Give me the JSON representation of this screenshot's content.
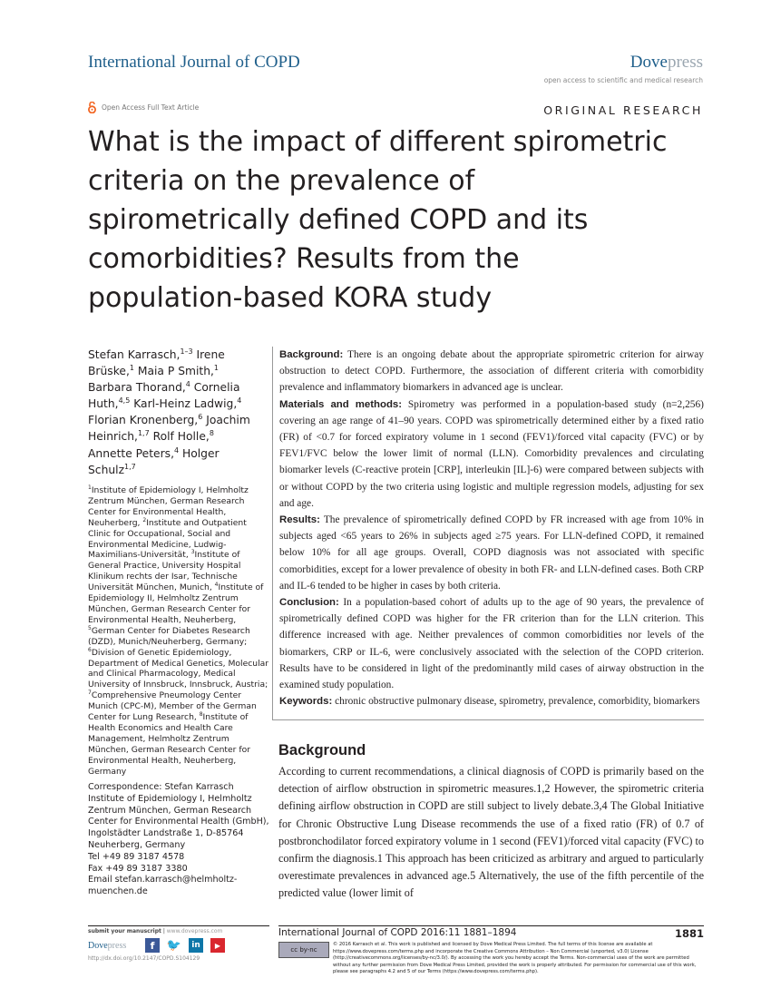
{
  "header": {
    "journal": "International Journal of COPD",
    "publisher_main": "Dove",
    "publisher_suffix": "press",
    "tagline": "open access to scientific and medical research",
    "open_access": "Open Access Full Text Article",
    "article_type": "ORIGINAL RESEARCH"
  },
  "title": "What is the impact of different spirometric criteria on the prevalence of spirometrically defined COPD and its comorbidities? Results from the population-based KORA study",
  "authors": [
    {
      "name": "Stefan Karrasch,",
      "sup": "1–3"
    },
    {
      "name": " Irene Brüske,",
      "sup": "1"
    },
    {
      "name": " Maia P Smith,",
      "sup": "1"
    },
    {
      "name": " Barbara Thorand,",
      "sup": "4"
    },
    {
      "name": " Cornelia Huth,",
      "sup": "4,5"
    },
    {
      "name": " Karl-Heinz Ladwig,",
      "sup": "4"
    },
    {
      "name": " Florian Kronenberg,",
      "sup": "6"
    },
    {
      "name": " Joachim Heinrich,",
      "sup": "1,7"
    },
    {
      "name": " Rolf Holle,",
      "sup": "8"
    },
    {
      "name": " Annette Peters,",
      "sup": "4"
    },
    {
      "name": " Holger Schulz",
      "sup": "1,7"
    }
  ],
  "affiliations": [
    {
      "sup": "1",
      "text": "Institute of Epidemiology I, Helmholtz Zentrum München, German Research Center for Environmental Health, Neuherberg, "
    },
    {
      "sup": "2",
      "text": "Institute and Outpatient Clinic for Occupational, Social and Environmental Medicine, Ludwig-Maximilians-Universität, "
    },
    {
      "sup": "3",
      "text": "Institute of General Practice, University Hospital Klinikum rechts der Isar, Technische Universität München, Munich, "
    },
    {
      "sup": "4",
      "text": "Institute of Epidemiology II, Helmholtz Zentrum München, German Research Center for Environmental Health, Neuherberg, "
    },
    {
      "sup": "5",
      "text": "German Center for Diabetes Research (DZD), Munich/Neuherberg, Germany; "
    },
    {
      "sup": "6",
      "text": "Division of Genetic Epidemiology, Department of Medical Genetics, Molecular and Clinical Pharmacology, Medical University of Innsbruck, Innsbruck, Austria; "
    },
    {
      "sup": "7",
      "text": "Comprehensive Pneumology Center Munich (CPC-M), Member of the German Center for Lung Research, "
    },
    {
      "sup": "8",
      "text": "Institute of Health Economics and Health Care Management, Helmholtz Zentrum München, German Research Center for Environmental Health, Neuherberg, Germany"
    }
  ],
  "correspondence": [
    "Correspondence: Stefan Karrasch",
    "Institute of Epidemiology I, Helmholtz Zentrum München, German Research Center for Environmental Health (GmbH), Ingolstädter Landstraße 1, D-85764 Neuherberg, Germany",
    "Tel +49 89 3187 4578",
    "Fax +49 89 3187 3380",
    "Email stefan.karrasch@helmholtz-muenchen.de"
  ],
  "abstract": [
    {
      "label": "Background:",
      "text": " There is an ongoing debate about the appropriate spirometric criterion for airway obstruction to detect COPD. Furthermore, the association of different criteria with comorbidity prevalence and inflammatory biomarkers in advanced age is unclear."
    },
    {
      "label": "Materials and methods:",
      "text": " Spirometry was performed in a population-based study (n=2,256) covering an age range of 41–90 years. COPD was spirometrically determined either by a fixed ratio (FR) of <0.7 for forced expiratory volume in 1 second (FEV1)/forced vital capacity (FVC) or by FEV1/FVC below the lower limit of normal (LLN). Comorbidity prevalences and circulating biomarker levels (C-reactive protein [CRP], interleukin [IL]-6) were compared between subjects with or without COPD by the two criteria using logistic and multiple regression models, adjusting for sex and age."
    },
    {
      "label": "Results:",
      "text": " The prevalence of spirometrically defined COPD by FR increased with age from 10% in subjects aged <65 years to 26% in subjects aged ≥75 years. For LLN-defined COPD, it remained below 10% for all age groups. Overall, COPD diagnosis was not associated with specific comorbidities, except for a lower prevalence of obesity in both FR- and LLN-defined cases. Both CRP and IL-6 tended to be higher in cases by both criteria."
    },
    {
      "label": "Conclusion:",
      "text": " In a population-based cohort of adults up to the age of 90 years, the prevalence of spirometrically defined COPD was higher for the FR criterion than for the LLN criterion. This difference increased with age. Neither prevalences of common comorbidities nor levels of the biomarkers, CRP or IL-6, were conclusively associated with the selection of the COPD criterion. Results have to be considered in light of the predominantly mild cases of airway obstruction in the examined study population."
    },
    {
      "label": "Keywords:",
      "text": " chronic obstructive pulmonary disease, spirometry, prevalence, comorbidity, biomarkers"
    }
  ],
  "section_heading": "Background",
  "body_text": "According to current recommendations, a clinical diagnosis of COPD is primarily based on the detection of airflow obstruction in spirometric measures.1,2 However, the spirometric criteria defining airflow obstruction in COPD are still subject to lively debate.3,4 The Global Initiative for Chronic Obstructive Lung Disease recommends the use of a fixed ratio (FR) of 0.7 of postbronchodilator forced expiratory volume in 1 second (FEV1)/forced vital capacity (FVC) to confirm the diagnosis.1 This approach has been criticized as arbitrary and argued to particularly overestimate prevalences in advanced age.5 Alternatively, the use of the fifth percentile of the predicted value (lower limit of",
  "footer": {
    "submit": "submit your manuscript",
    "submit_url": "www.dovepress.com",
    "dove_main": "Dove",
    "dove_suffix": "press",
    "doi": "http://dx.doi.org/10.2147/COPD.S104129",
    "social_icons": [
      "facebook-icon",
      "twitter-icon",
      "linkedin-icon",
      "youtube-icon"
    ],
    "citation": "International Journal of COPD 2016:11 1881–1894",
    "page": "1881",
    "cc_label": "cc by-nc",
    "license": "© 2016 Karrasch et al. This work is published and licensed by Dove Medical Press Limited. The full terms of this license are available at https://www.dovepress.com/terms.php and incorporate the Creative Commons Attribution – Non Commercial (unported, v3.0) License (http://creativecommons.org/licenses/by-nc/3.0/). By accessing the work you hereby accept the Terms. Non-commercial uses of the work are permitted without any further permission from Dove Medical Press Limited, provided the work is properly attributed. For permission for commercial use of this work, please see paragraphs 4.2 and 5 of our Terms (https://www.dovepress.com/terms.php)."
  },
  "colors": {
    "journal_blue": "#1f5f8b",
    "open_access_orange": "#f26522"
  }
}
